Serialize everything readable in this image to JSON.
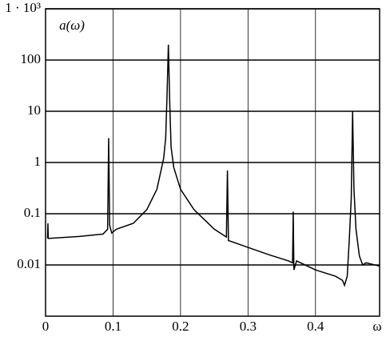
{
  "chart_data": {
    "type": "line",
    "x_label": "ω",
    "y_label": "a(ω)",
    "xlim": [
      0,
      0.495
    ],
    "ylim": [
      0.001,
      1000
    ],
    "y_log": true,
    "grid": true,
    "color": "#000000",
    "xticks": [
      0,
      0.1,
      0.2,
      0.3,
      0.4
    ],
    "yticks": [
      0.01,
      0.1,
      1,
      10,
      100,
      {
        "value": 1000,
        "label": "1 · 10³"
      }
    ],
    "x": [
      0.003,
      0.0035,
      0.004,
      0.05,
      0.085,
      0.092,
      0.0935,
      0.095,
      0.098,
      0.105,
      0.13,
      0.15,
      0.165,
      0.175,
      0.178,
      0.18,
      0.182,
      0.184,
      0.186,
      0.19,
      0.2,
      0.22,
      0.25,
      0.268,
      0.2695,
      0.271,
      0.3,
      0.33,
      0.36,
      0.366,
      0.367,
      0.368,
      0.372,
      0.4,
      0.43,
      0.44,
      0.443,
      0.447,
      0.45,
      0.453,
      0.455,
      0.457,
      0.46,
      0.465,
      0.47,
      0.475,
      0.495
    ],
    "values": [
      0.033,
      0.065,
      0.033,
      0.036,
      0.04,
      0.05,
      3,
      0.06,
      0.042,
      0.05,
      0.065,
      0.12,
      0.3,
      1.2,
      3,
      20,
      200,
      15,
      2,
      0.8,
      0.3,
      0.12,
      0.05,
      0.035,
      0.7,
      0.03,
      0.022,
      0.016,
      0.012,
      0.011,
      0.11,
      0.008,
      0.012,
      0.008,
      0.006,
      0.005,
      0.004,
      0.006,
      0.03,
      0.2,
      10,
      0.3,
      0.05,
      0.015,
      0.01,
      0.011,
      0.0095
    ]
  }
}
